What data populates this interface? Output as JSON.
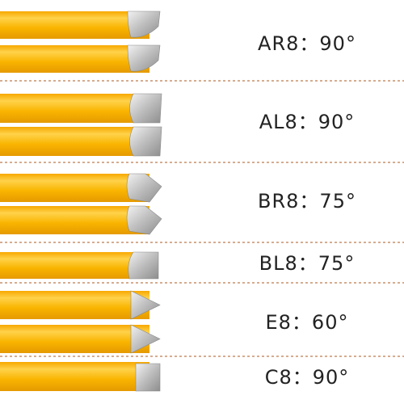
{
  "items": [
    {
      "label": "AR8：90°"
    },
    {
      "label": "AL8：90°"
    },
    {
      "label": "BR8：75°"
    },
    {
      "label": "BL8：75°"
    },
    {
      "label": "E8：60°"
    },
    {
      "label": "C8：90°"
    }
  ]
}
